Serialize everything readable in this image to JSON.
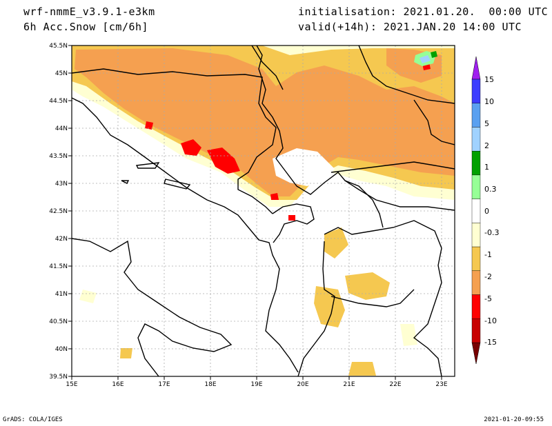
{
  "header": {
    "model": "wrf-nmmE_v3.9.1-e3km",
    "variable": "6h Acc.Snow [cm/6h]",
    "init": "initialisation: 2021.01.20.  00:00 UTC",
    "valid": "valid(+14h): 2021.JAN.20 14:00 UTC"
  },
  "footer": {
    "credit": "GrADS: COLA/IGES",
    "timestamp": "2021-01-20-09:55"
  },
  "chart_data": {
    "type": "heatmap",
    "lon_range": [
      15,
      23.3
    ],
    "lat_range": [
      39.5,
      45.5
    ],
    "lat_ticks": [
      "45.5N",
      "45N",
      "44.5N",
      "44N",
      "43.5N",
      "43N",
      "42.5N",
      "42N",
      "41.5N",
      "41N",
      "40.5N",
      "40N",
      "39.5N"
    ],
    "lon_ticks": [
      "15E",
      "16E",
      "17E",
      "18E",
      "19E",
      "20E",
      "21E",
      "22E",
      "23E"
    ],
    "grid": true,
    "colorbar": {
      "labels": [
        "15",
        "10",
        "5",
        "2",
        "1",
        "0.3",
        "0",
        "-0.3",
        "-1",
        "-2",
        "-5",
        "-10",
        "-15"
      ],
      "colors": [
        "#a020f0",
        "#3c3cff",
        "#5aa0f0",
        "#a0d2ff",
        "#00a000",
        "#96ff96",
        "#ffffff",
        "#ffffd2",
        "#f5c850",
        "#f5a050",
        "#ff0000",
        "#c80000",
        "#780000"
      ]
    }
  }
}
